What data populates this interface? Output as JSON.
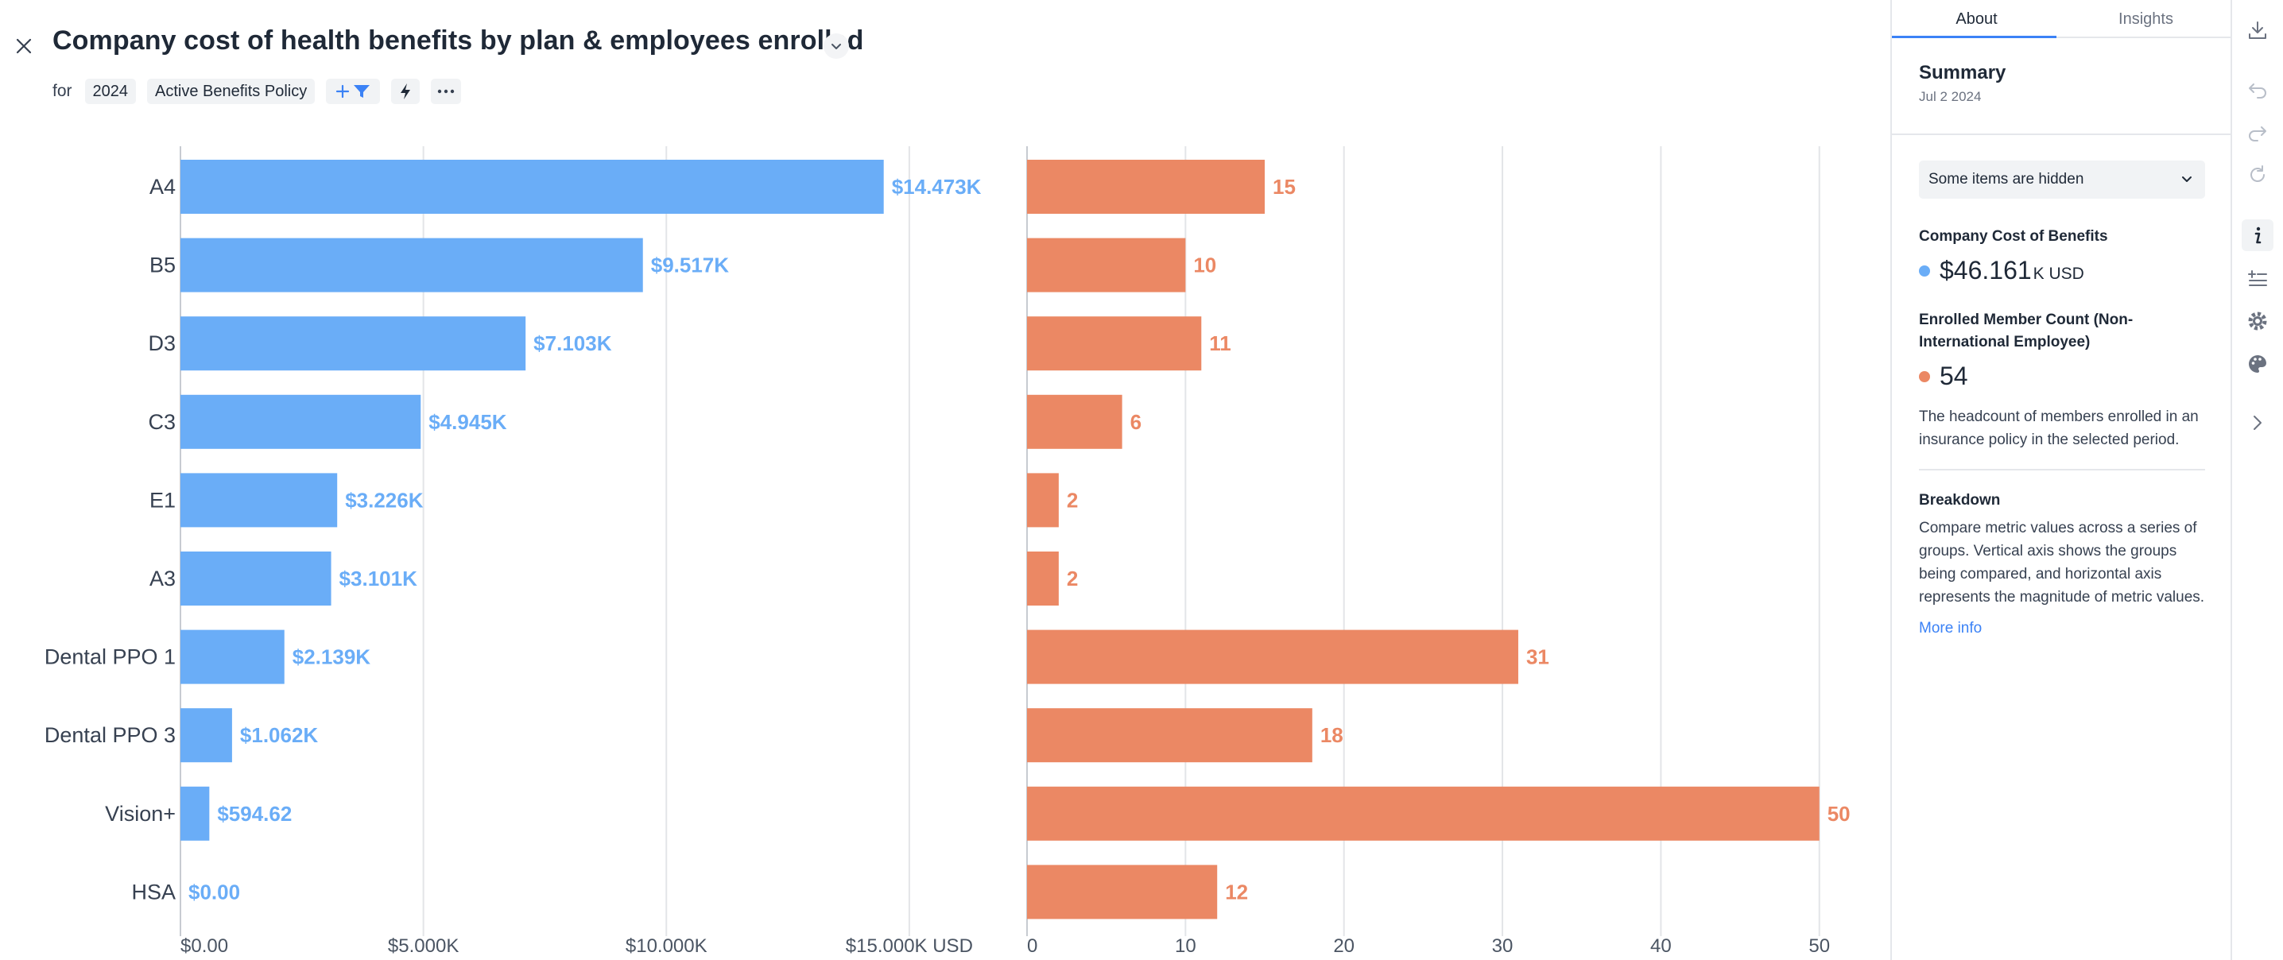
{
  "header": {
    "title": "Company cost of health benefits by plan & employees enrolled",
    "for_label": "for",
    "year_chip": "2024",
    "policy_chip": "Active Benefits Policy"
  },
  "chart_data": [
    {
      "type": "bar",
      "orientation": "horizontal",
      "title": "Company Cost of Benefits",
      "categories": [
        "A4",
        "B5",
        "D3",
        "C3",
        "E1",
        "A3",
        "Dental PPO 1",
        "Dental PPO 3",
        "Vision+",
        "HSA"
      ],
      "values": [
        14473,
        9517,
        7103,
        4945,
        3226,
        3101,
        2139,
        1062,
        594.62,
        0
      ],
      "labels": [
        "$14.473K",
        "$9.517K",
        "$7.103K",
        "$4.945K",
        "$3.226K",
        "$3.101K",
        "$2.139K",
        "$1.062K",
        "$594.62",
        "$0.00"
      ],
      "xlim": [
        0,
        16500
      ],
      "xticks": [
        0,
        5000,
        10000,
        15000
      ],
      "xtick_labels": [
        "$0.00",
        "$5.000K",
        "$10.000K",
        "$15.000K USD"
      ],
      "color": "#6aadf7"
    },
    {
      "type": "bar",
      "orientation": "horizontal",
      "title": "Enrolled Member Count (Non-International Employee)",
      "categories": [
        "A4",
        "B5",
        "D3",
        "C3",
        "E1",
        "A3",
        "Dental PPO 1",
        "Dental PPO 3",
        "Vision+",
        "HSA"
      ],
      "values": [
        15,
        10,
        11,
        6,
        2,
        2,
        31,
        18,
        50,
        12
      ],
      "labels": [
        "15",
        "10",
        "11",
        "6",
        "2",
        "2",
        "31",
        "18",
        "50",
        "12"
      ],
      "xlim": [
        0,
        52
      ],
      "xticks": [
        0,
        10,
        20,
        30,
        40,
        50
      ],
      "xtick_labels": [
        "0",
        "10",
        "20",
        "30",
        "40",
        "50"
      ],
      "color": "#eb8864"
    }
  ],
  "side": {
    "tabs": {
      "about": "About",
      "insights": "Insights"
    },
    "summary_title": "Summary",
    "summary_date": "Jul 2 2024",
    "hidden_dropdown": "Some items are hidden",
    "metric1": {
      "label": "Company Cost of Benefits",
      "value": "$46.161",
      "unit": "K USD",
      "color": "#6aadf7"
    },
    "metric2": {
      "label": "Enrolled Member Count (Non-International Employee)",
      "value": "54",
      "color": "#eb8864"
    },
    "metric2_desc": "The headcount of members enrolled in an insurance policy in the selected period.",
    "breakdown_title": "Breakdown",
    "breakdown_desc": "Compare metric values across a series of groups. Vertical axis shows the groups being compared, and horizontal axis represents the magnitude of metric values.",
    "more_info": "More info"
  },
  "toolbar_icons": [
    "download-icon",
    "undo-icon",
    "redo-icon",
    "refresh-icon",
    "info-icon",
    "add-list-icon",
    "settings-icon",
    "palette-icon",
    "chevron-right-icon"
  ]
}
